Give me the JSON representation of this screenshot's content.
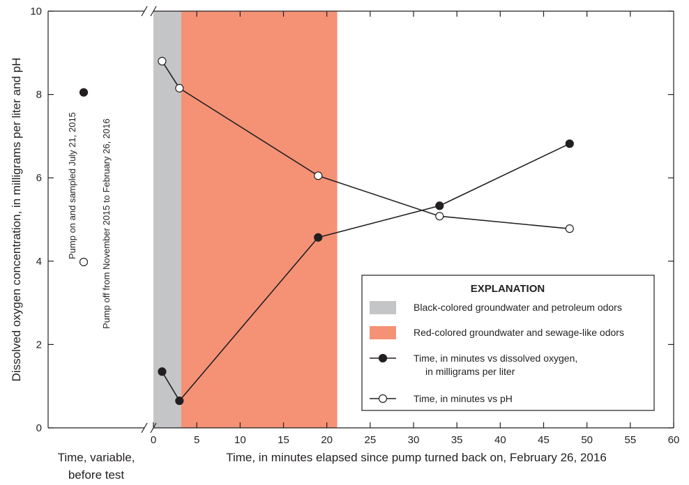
{
  "chart_data": {
    "type": "line",
    "ylabel": "Dissolved oxygen concentration, in milligrams per liter and pH",
    "xlabel": "Time, in minutes elapsed since pump turned back on, February 26, 2016",
    "xlabel_left": "Time, variable, before test",
    "xlabel_left_lines": [
      "Time, variable,",
      "before test"
    ],
    "xlim": [
      0,
      60
    ],
    "ylim": [
      0,
      10
    ],
    "x_ticks": [
      "0",
      "5",
      "10",
      "15",
      "20",
      "25",
      "30",
      "35",
      "40",
      "45",
      "50",
      "55",
      "60"
    ],
    "y_ticks": [
      "0",
      "2",
      "4",
      "6",
      "8",
      "10"
    ],
    "annotations": [
      "Pump on and sampled July 21, 2015",
      "Pump off from November 2015 to February 26, 2016"
    ],
    "shaded_regions": [
      {
        "label": "Black-colored groundwater and petroleum odors",
        "x": [
          0,
          3.2
        ],
        "color": "#c4c5c7"
      },
      {
        "label": "Red-colored groundwater and sewage-like odors",
        "x": [
          3.2,
          21.2
        ],
        "color": "#f59276"
      }
    ],
    "series": [
      {
        "name": "Time, in minutes vs dissolved oxygen, in milligrams per liter",
        "name_lines": [
          "Time, in minutes vs dissolved oxygen,",
          "in milligrams per liter"
        ],
        "marker": "filled",
        "pre_test_value": 8.05,
        "x": [
          1,
          3,
          19,
          33,
          48
        ],
        "y": [
          1.35,
          0.65,
          4.57,
          5.33,
          6.82
        ]
      },
      {
        "name": "Time, in minutes vs pH",
        "marker": "open",
        "pre_test_value": 3.98,
        "x": [
          1,
          3,
          19,
          33,
          48
        ],
        "y": [
          8.8,
          8.15,
          6.05,
          5.08,
          4.78
        ]
      }
    ],
    "legend": {
      "title": "EXPLANATION",
      "placement": "bottom-right"
    },
    "grid": false
  }
}
